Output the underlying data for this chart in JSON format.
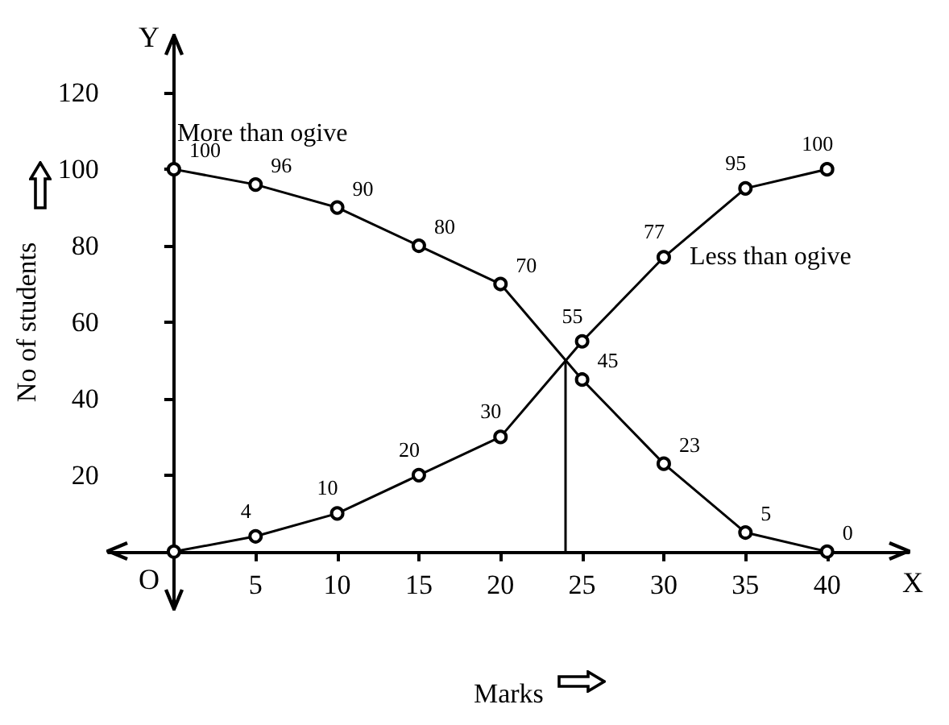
{
  "chart_data": {
    "type": "line",
    "xlabel": "Marks",
    "ylabel": "No of students",
    "x": [
      0,
      5,
      10,
      15,
      20,
      25,
      30,
      35,
      40
    ],
    "series": [
      {
        "name": "More than ogive",
        "color": "#000000",
        "values": [
          100,
          96,
          90,
          80,
          70,
          45,
          23,
          5,
          0
        ],
        "value_labels": [
          "100",
          "96",
          "90",
          "80",
          "70",
          "45",
          "23",
          "5",
          "0"
        ]
      },
      {
        "name": "Less than ogive",
        "color": "#000000",
        "values": [
          0,
          4,
          10,
          20,
          30,
          55,
          77,
          95,
          100
        ],
        "value_labels": [
          null,
          "4",
          "10",
          "20",
          "30",
          "55",
          "77",
          "95",
          "100"
        ]
      }
    ],
    "xlim": [
      -4,
      45
    ],
    "ylim": [
      -15,
      135
    ],
    "xticks": [
      5,
      10,
      15,
      20,
      25,
      30,
      35,
      40
    ],
    "yticks": [
      20,
      40,
      60,
      80,
      100,
      120
    ],
    "ref_lines": [
      {
        "axis": "x",
        "value": 24,
        "label": null
      }
    ],
    "annotations": [
      "O",
      "X",
      "Y"
    ],
    "marker": "circle",
    "line_style": "solid",
    "grid": false
  }
}
